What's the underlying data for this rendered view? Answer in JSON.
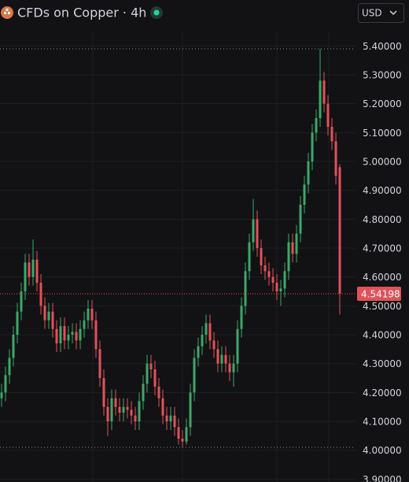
{
  "chart_data": {
    "type": "candlestick",
    "title": "CFDs on Copper · 4h",
    "currency": "USD",
    "up_color": "#3fa66a",
    "down_color": "#e0525a",
    "grid": true,
    "ylim": [
      3.89,
      5.45
    ],
    "yticks": [
      {
        "value": 3.9,
        "label": "3.90000"
      },
      {
        "value": 4.0,
        "label": "4.00000"
      },
      {
        "value": 4.1,
        "label": "4.10000"
      },
      {
        "value": 4.2,
        "label": "4.20000"
      },
      {
        "value": 4.3,
        "label": "4.30000"
      },
      {
        "value": 4.4,
        "label": "4.40000"
      },
      {
        "value": 4.5,
        "label": "4.50000"
      },
      {
        "value": 4.6,
        "label": "4.60000"
      },
      {
        "value": 4.7,
        "label": "4.70000"
      },
      {
        "value": 4.8,
        "label": "4.80000"
      },
      {
        "value": 4.9,
        "label": "4.90000"
      },
      {
        "value": 5.0,
        "label": "5.00000"
      },
      {
        "value": 5.1,
        "label": "5.10000"
      },
      {
        "value": 5.2,
        "label": "5.20000"
      },
      {
        "value": 5.3,
        "label": "5.30000"
      },
      {
        "value": 5.4,
        "label": "5.40000"
      }
    ],
    "open": [
      4.18,
      4.2,
      4.26,
      4.32,
      4.4,
      4.48,
      4.55,
      4.65,
      4.6,
      4.66,
      4.58,
      4.5,
      4.45,
      4.48,
      4.42,
      4.37,
      4.43,
      4.38,
      4.4,
      4.41,
      4.38,
      4.42,
      4.45,
      4.49,
      4.45,
      4.35,
      4.25,
      4.15,
      4.1,
      4.18,
      4.15,
      4.13,
      4.15,
      4.14,
      4.12,
      4.1,
      4.17,
      4.23,
      4.3,
      4.28,
      4.22,
      4.18,
      4.12,
      4.1,
      4.12,
      4.08,
      4.04,
      4.03,
      4.08,
      4.2,
      4.32,
      4.36,
      4.4,
      4.44,
      4.38,
      4.35,
      4.3,
      4.33,
      4.3,
      4.27,
      4.3,
      4.42,
      4.5,
      4.62,
      4.72,
      4.8,
      4.7,
      4.64,
      4.62,
      4.6,
      4.58,
      4.55,
      4.56,
      4.62,
      4.72,
      4.68,
      4.75,
      4.85,
      4.92,
      5.0,
      5.1,
      5.15,
      5.28,
      5.2,
      5.12,
      5.07,
      4.98
    ],
    "high": [
      4.23,
      4.29,
      4.35,
      4.43,
      4.51,
      4.58,
      4.68,
      4.68,
      4.73,
      4.69,
      4.61,
      4.53,
      4.51,
      4.51,
      4.45,
      4.46,
      4.46,
      4.43,
      4.44,
      4.44,
      4.45,
      4.48,
      4.52,
      4.52,
      4.48,
      4.38,
      4.28,
      4.18,
      4.21,
      4.21,
      4.18,
      4.18,
      4.18,
      4.17,
      4.15,
      4.2,
      4.26,
      4.33,
      4.33,
      4.31,
      4.25,
      4.21,
      4.15,
      4.15,
      4.15,
      4.11,
      4.07,
      4.11,
      4.23,
      4.35,
      4.39,
      4.43,
      4.47,
      4.47,
      4.41,
      4.38,
      4.36,
      4.36,
      4.33,
      4.33,
      4.45,
      4.53,
      4.65,
      4.75,
      4.87,
      4.83,
      4.73,
      4.67,
      4.65,
      4.63,
      4.61,
      4.59,
      4.65,
      4.75,
      4.75,
      4.78,
      4.88,
      4.95,
      5.03,
      5.13,
      5.18,
      5.39,
      5.31,
      5.23,
      5.15,
      5.1,
      4.99
    ],
    "low": [
      4.15,
      4.17,
      4.23,
      4.29,
      4.37,
      4.45,
      4.52,
      4.57,
      4.57,
      4.55,
      4.47,
      4.42,
      4.42,
      4.39,
      4.34,
      4.34,
      4.35,
      4.35,
      4.37,
      4.35,
      4.35,
      4.39,
      4.42,
      4.42,
      4.32,
      4.22,
      4.12,
      4.05,
      4.07,
      4.12,
      4.1,
      4.1,
      4.11,
      4.09,
      4.07,
      4.07,
      4.14,
      4.2,
      4.25,
      4.19,
      4.15,
      4.09,
      4.07,
      4.07,
      4.05,
      4.02,
      4.01,
      4.02,
      4.05,
      4.17,
      4.29,
      4.33,
      4.37,
      4.35,
      4.32,
      4.27,
      4.27,
      4.27,
      4.24,
      4.22,
      4.27,
      4.39,
      4.47,
      4.59,
      4.69,
      4.67,
      4.61,
      4.59,
      4.57,
      4.55,
      4.52,
      4.5,
      4.53,
      4.59,
      4.65,
      4.65,
      4.72,
      4.82,
      4.89,
      4.97,
      5.07,
      5.12,
      5.17,
      5.09,
      5.04,
      4.92,
      4.47
    ],
    "close": [
      4.2,
      4.26,
      4.32,
      4.4,
      4.48,
      4.55,
      4.65,
      4.6,
      4.66,
      4.58,
      4.5,
      4.45,
      4.48,
      4.42,
      4.37,
      4.43,
      4.38,
      4.4,
      4.41,
      4.38,
      4.42,
      4.45,
      4.49,
      4.45,
      4.35,
      4.25,
      4.15,
      4.1,
      4.18,
      4.15,
      4.13,
      4.15,
      4.14,
      4.12,
      4.1,
      4.17,
      4.23,
      4.3,
      4.28,
      4.22,
      4.18,
      4.12,
      4.1,
      4.12,
      4.08,
      4.04,
      4.03,
      4.08,
      4.2,
      4.32,
      4.36,
      4.4,
      4.44,
      4.38,
      4.35,
      4.3,
      4.33,
      4.3,
      4.27,
      4.3,
      4.42,
      4.5,
      4.62,
      4.72,
      4.8,
      4.7,
      4.64,
      4.62,
      4.6,
      4.58,
      4.55,
      4.56,
      4.62,
      4.72,
      4.68,
      4.75,
      4.85,
      4.92,
      5.0,
      5.1,
      5.15,
      5.28,
      5.2,
      5.12,
      5.07,
      4.95,
      4.54198
    ]
  }
}
